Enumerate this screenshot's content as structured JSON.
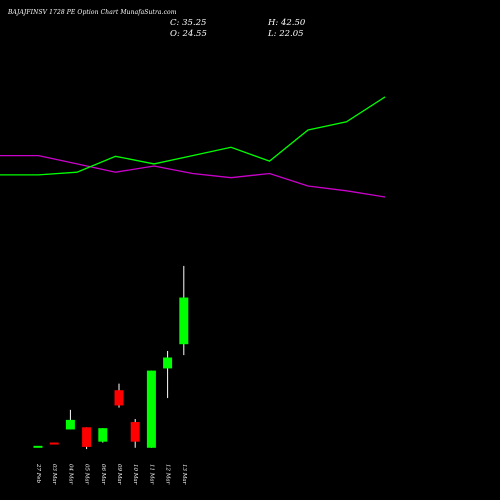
{
  "header": {
    "title": "BAJAJFINSV 1728  PE Option  Chart MunafaSutra.com",
    "close": "C: 35.25",
    "open": "O: 24.55",
    "high": "H: 42.50",
    "low": "L: 22.05"
  },
  "colors": {
    "background": "#000000",
    "bull": "#00ff00",
    "bear": "#ff0000",
    "wick": "#ffffff",
    "ma_fast": "#00ff00",
    "ma_slow": "#cc00cc",
    "label": "#ffffff"
  },
  "chart_data": {
    "type": "candlestick",
    "categories": [
      "27 Feb",
      "03 Mar",
      "04 Mar",
      "05 Mar",
      "06 Mar",
      "09 Mar",
      "10 Mar",
      "11 Mar",
      "12 Mar",
      "13 Mar"
    ],
    "ohlc": [
      {
        "o": 1.0,
        "h": 1.0,
        "l": 1.0,
        "c": 1.25
      },
      {
        "o": 2.0,
        "h": 2.0,
        "l": 1.7,
        "c": 1.7
      },
      {
        "o": 5.0,
        "h": 9.5,
        "l": 5.0,
        "c": 7.2
      },
      {
        "o": 5.5,
        "h": 5.5,
        "l": 0.5,
        "c": 1.0
      },
      {
        "o": 2.2,
        "h": 5.3,
        "l": 2.0,
        "c": 5.3
      },
      {
        "o": 14.0,
        "h": 15.5,
        "l": 10.0,
        "c": 10.5
      },
      {
        "o": 6.7,
        "h": 7.4,
        "l": 0.8,
        "c": 2.2
      },
      {
        "o": 0.8,
        "h": 18.5,
        "l": 0.8,
        "c": 18.5
      },
      {
        "o": 19.0,
        "h": 23.0,
        "l": 12.2,
        "c": 21.5
      },
      {
        "o": 24.55,
        "h": 42.5,
        "l": 22.05,
        "c": 35.25
      }
    ],
    "ma_fast": [
      8.7,
      8.7,
      9.1,
      11.4,
      10.3,
      11.5,
      12.7,
      10.7,
      15.2,
      16.4,
      20.0
    ],
    "ma_slow": [
      11.5,
      11.5,
      10.3,
      9.1,
      10.0,
      8.9,
      8.3,
      8.9,
      7.1,
      6.4,
      5.5
    ],
    "ylim": [
      -2,
      45
    ],
    "xlabel": "",
    "ylabel": ""
  }
}
